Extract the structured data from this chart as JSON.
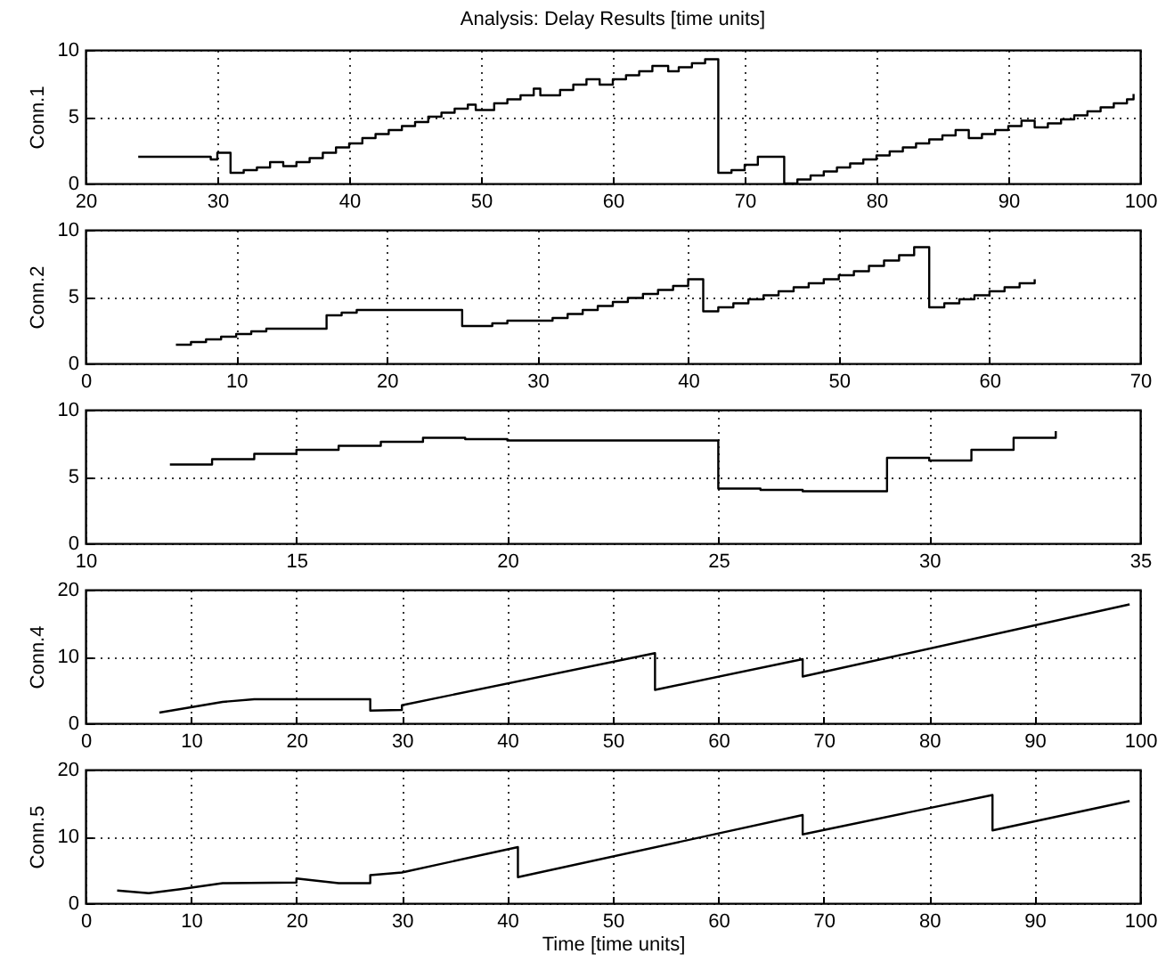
{
  "chart_data": [
    {
      "type": "step",
      "title": "Analysis: Delay Results [time units]",
      "ylabel": "Conn.1",
      "xlim": [
        20,
        100
      ],
      "xticks": [
        20,
        30,
        40,
        50,
        60,
        70,
        80,
        90,
        100
      ],
      "ylim": [
        0,
        10
      ],
      "yticks": [
        0,
        5,
        10
      ],
      "grid": true,
      "x": [
        24,
        29.5,
        30,
        31,
        32,
        33,
        34,
        35,
        36,
        37,
        38,
        39,
        40,
        41,
        42,
        43,
        44,
        45,
        46,
        47,
        48,
        49,
        49.6,
        51,
        52,
        53,
        54,
        54.5,
        56,
        57,
        58,
        59,
        60,
        61,
        62,
        63,
        64.2,
        65,
        66,
        67,
        68,
        69,
        70,
        71,
        73,
        74,
        75,
        76,
        77,
        78,
        79,
        80,
        81,
        82,
        83,
        84,
        85,
        86,
        87,
        88,
        89,
        90,
        91,
        92,
        93,
        94,
        95,
        96,
        97,
        98,
        99,
        99.5
      ],
      "series": [
        {
          "color": "#000000",
          "values": [
            2.0,
            1.8,
            2.3,
            0.8,
            1.0,
            1.2,
            1.6,
            1.3,
            1.6,
            1.9,
            2.3,
            2.7,
            3.0,
            3.4,
            3.7,
            4.0,
            4.3,
            4.6,
            5.0,
            5.3,
            5.6,
            5.9,
            5.5,
            6.0,
            6.3,
            6.6,
            7.1,
            6.6,
            7.0,
            7.4,
            7.8,
            7.4,
            7.8,
            8.1,
            8.4,
            8.8,
            8.4,
            8.7,
            9.0,
            9.3,
            0.8,
            1.0,
            1.4,
            2.0,
            0.0,
            0.3,
            0.6,
            0.9,
            1.2,
            1.5,
            1.8,
            2.1,
            2.4,
            2.7,
            3.0,
            3.3,
            3.6,
            4.0,
            3.4,
            3.7,
            4.0,
            4.3,
            4.7,
            4.2,
            4.5,
            4.8,
            5.1,
            5.4,
            5.7,
            6.0,
            6.3,
            6.7
          ]
        }
      ]
    },
    {
      "type": "step",
      "ylabel": "Conn.2",
      "xlim": [
        0,
        70
      ],
      "xticks": [
        0,
        10,
        20,
        30,
        40,
        50,
        60,
        70
      ],
      "ylim": [
        0,
        10
      ],
      "yticks": [
        0,
        5,
        10
      ],
      "grid": true,
      "x": [
        6,
        7,
        8,
        9,
        10,
        11,
        12,
        16,
        17,
        18,
        25,
        27,
        28,
        31,
        32,
        33,
        34,
        35,
        36,
        37,
        38,
        39,
        40,
        41,
        42,
        43,
        44,
        45,
        46,
        47,
        48,
        49,
        50,
        51,
        52,
        53,
        54,
        55,
        56,
        57,
        58,
        59,
        60,
        61,
        62,
        63
      ],
      "series": [
        {
          "color": "#000000",
          "values": [
            1.4,
            1.6,
            1.8,
            2.0,
            2.2,
            2.4,
            2.6,
            3.6,
            3.8,
            4.0,
            2.8,
            3.0,
            3.2,
            3.4,
            3.7,
            4.0,
            4.3,
            4.6,
            4.9,
            5.2,
            5.5,
            5.8,
            6.3,
            3.9,
            4.2,
            4.5,
            4.8,
            5.1,
            5.4,
            5.7,
            6.0,
            6.3,
            6.6,
            6.9,
            7.3,
            7.7,
            8.1,
            8.7,
            4.2,
            4.5,
            4.8,
            5.1,
            5.4,
            5.7,
            6.0,
            6.3
          ]
        }
      ]
    },
    {
      "type": "step",
      "xlim": [
        10,
        35
      ],
      "xticks": [
        10,
        15,
        20,
        25,
        30,
        35
      ],
      "ylim": [
        0,
        10
      ],
      "yticks": [
        0,
        5,
        10
      ],
      "grid": true,
      "x": [
        12,
        13,
        14,
        15,
        16,
        17,
        18,
        19,
        20,
        25,
        26,
        27,
        29,
        30,
        31,
        32,
        33
      ],
      "series": [
        {
          "color": "#000000",
          "values": [
            5.9,
            6.3,
            6.7,
            7.0,
            7.3,
            7.6,
            7.9,
            7.8,
            7.7,
            4.1,
            4.0,
            3.9,
            6.4,
            6.2,
            7.0,
            7.9,
            8.4
          ]
        }
      ]
    },
    {
      "type": "line",
      "ylabel": "Conn.4",
      "xlim": [
        0,
        100
      ],
      "xticks": [
        0,
        10,
        20,
        30,
        40,
        50,
        60,
        70,
        80,
        90,
        100
      ],
      "ylim": [
        0,
        20
      ],
      "yticks": [
        0,
        10,
        20
      ],
      "grid": true,
      "x": [
        7,
        10,
        13,
        16,
        27,
        27,
        30,
        30,
        54,
        54,
        68,
        68,
        99
      ],
      "series": [
        {
          "color": "#000000",
          "values": [
            1.6,
            2.4,
            3.2,
            3.6,
            3.6,
            1.9,
            2.0,
            2.7,
            10.5,
            5.0,
            9.6,
            7.0,
            17.8
          ]
        }
      ]
    },
    {
      "type": "line",
      "ylabel": "Conn.5",
      "xlabel": "Time [time units]",
      "xlim": [
        0,
        100
      ],
      "xticks": [
        0,
        10,
        20,
        30,
        40,
        50,
        60,
        70,
        80,
        90,
        100
      ],
      "ylim": [
        0,
        20
      ],
      "yticks": [
        0,
        10,
        20
      ],
      "grid": true,
      "x": [
        3,
        6,
        9,
        13,
        20,
        20,
        24,
        27,
        27,
        30,
        41,
        41,
        68,
        68,
        86,
        86,
        99
      ],
      "series": [
        {
          "color": "#000000",
          "values": [
            1.9,
            1.5,
            2.1,
            3.0,
            3.1,
            3.7,
            3.0,
            3.0,
            4.2,
            4.6,
            8.4,
            3.9,
            13.2,
            10.3,
            16.2,
            10.9,
            15.3
          ]
        }
      ]
    }
  ]
}
